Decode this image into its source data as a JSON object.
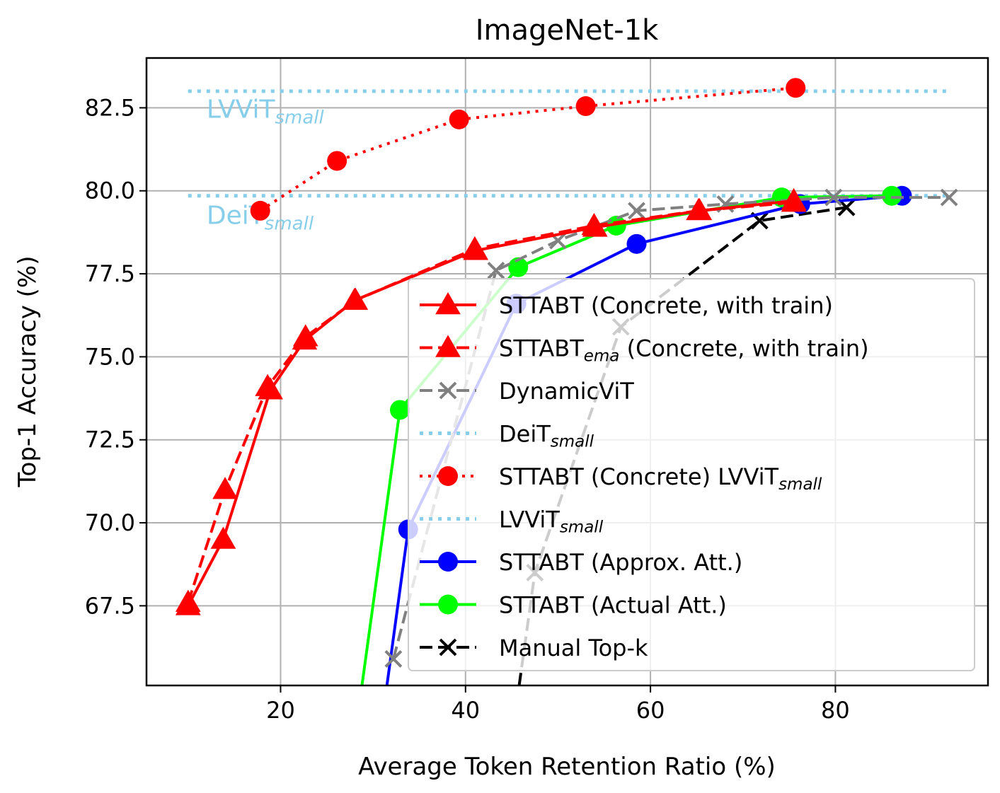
{
  "chart_data": {
    "type": "line",
    "title": "ImageNet-1k",
    "xlabel": "Average Token Retention Ratio (%)",
    "ylabel": "Top-1 Accuracy (%)",
    "xlim": [
      5.5,
      96.5
    ],
    "ylim": [
      65.1,
      84.0
    ],
    "xticks": [
      "20",
      "40",
      "60",
      "80"
    ],
    "xtick_values": [
      20,
      40,
      60,
      80
    ],
    "yticks": [
      "67.5",
      "70.0",
      "72.5",
      "75.0",
      "77.5",
      "80.0",
      "82.5"
    ],
    "ytick_values": [
      67.5,
      70.0,
      72.5,
      75.0,
      77.5,
      80.0,
      82.5
    ],
    "grid": true,
    "legend_position": "lower-right",
    "reference_lines": [
      {
        "name": "DeiT",
        "subscript": "small",
        "y": 79.85,
        "x_range": [
          10,
          92.5
        ],
        "color": "#87ceeb",
        "label_x": 12,
        "label_y": 79.0
      },
      {
        "name": "LVViT",
        "subscript": "small",
        "y": 83.0,
        "x_range": [
          10,
          92.5
        ],
        "color": "#87ceeb",
        "label_x": 12,
        "label_y": 82.2
      }
    ],
    "series": [
      {
        "name": "STTABT (Concrete, with train)",
        "name_sub": "",
        "name_suffix": "",
        "color": "#ff0000",
        "line": "solid",
        "marker": "triangle",
        "x": [
          10,
          13.8,
          18.9,
          22.6,
          28.0,
          41.1,
          54.0,
          65.3,
          75.5
        ],
        "y": [
          67.5,
          69.5,
          74.0,
          75.5,
          76.7,
          78.2,
          78.9,
          79.4,
          79.7
        ]
      },
      {
        "name": "STTABT",
        "name_sub": "ema",
        "name_suffix": " (Concrete, with train)",
        "color": "#ff0000",
        "line": "dashed",
        "marker": "triangle",
        "x": [
          10,
          14.0,
          18.6,
          22.7,
          28.1,
          41.0,
          53.9,
          65.2,
          75.5
        ],
        "y": [
          67.6,
          71.0,
          74.1,
          75.6,
          76.7,
          78.25,
          78.95,
          79.4,
          79.65
        ]
      },
      {
        "name": "DynamicViT",
        "name_sub": "",
        "name_suffix": "",
        "color": "#808080",
        "line": "dashed",
        "marker": "x",
        "x": [
          32.2,
          43.3,
          50.0,
          58.5,
          68.1,
          79.8,
          92.3
        ],
        "y": [
          65.9,
          77.6,
          78.5,
          79.4,
          79.6,
          79.8,
          79.8
        ]
      },
      {
        "name": "STTABT (Concrete) LVViT",
        "name_sub": "small",
        "name_suffix": "",
        "color": "#ff0000",
        "line": "dotted",
        "marker": "circle",
        "x": [
          17.8,
          26.1,
          39.3,
          53.0,
          75.7
        ],
        "y": [
          79.4,
          80.9,
          82.15,
          82.55,
          83.1
        ]
      },
      {
        "name": "STTABT (Approx. Att.)",
        "name_sub": "",
        "name_suffix": "",
        "color": "#0000ff",
        "line": "solid",
        "marker": "circle",
        "x": [
          31.5,
          33.8,
          45.5,
          58.5,
          76.2,
          87.2
        ],
        "y": [
          65.1,
          69.8,
          76.6,
          78.4,
          79.6,
          79.85
        ]
      },
      {
        "name": "STTABT (Actual Att.)",
        "name_sub": "",
        "name_suffix": "",
        "color": "#00ff00",
        "line": "solid",
        "marker": "circle",
        "x": [
          28.8,
          32.9,
          45.7,
          56.3,
          74.2,
          86.1
        ],
        "y": [
          65.1,
          73.4,
          77.7,
          78.95,
          79.8,
          79.85
        ]
      },
      {
        "name": "Manual Top-k",
        "name_sub": "",
        "name_suffix": "",
        "color": "#000000",
        "line": "dashed",
        "marker": "x",
        "x": [
          45.8,
          47.5,
          56.8,
          71.8,
          81.2
        ],
        "y": [
          65.1,
          68.5,
          75.9,
          79.1,
          79.5
        ]
      }
    ]
  }
}
